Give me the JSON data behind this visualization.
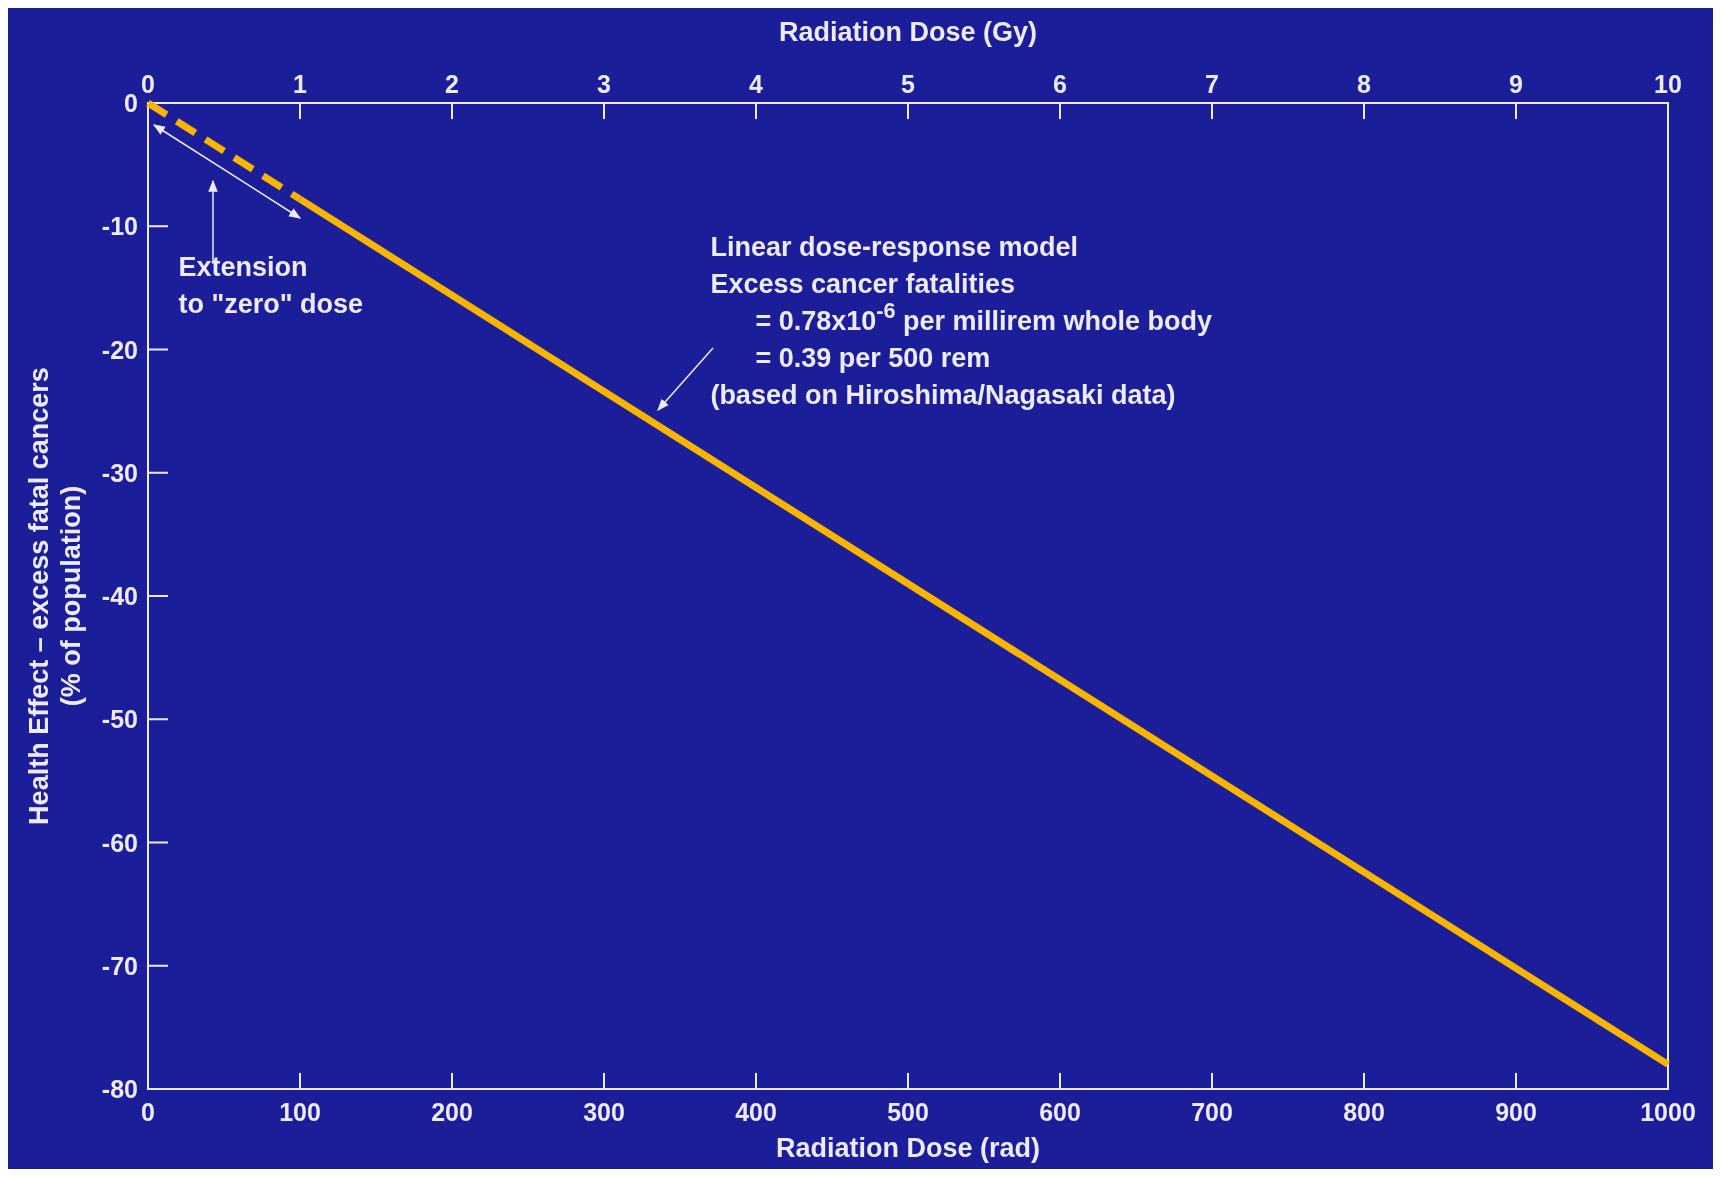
{
  "chart_data": {
    "type": "line",
    "xlabel": "Radiation Dose (rad)",
    "x2label": "Radiation Dose (Gy)",
    "ylabel": "Health Effect – excess fatal cancers\n(% of population)",
    "xlim": [
      0,
      1000
    ],
    "xticks": [
      0,
      100,
      200,
      300,
      400,
      500,
      600,
      700,
      800,
      900,
      1000
    ],
    "x2lim": [
      0,
      10
    ],
    "x2ticks": [
      0,
      1,
      2,
      3,
      4,
      5,
      6,
      7,
      8,
      9,
      10
    ],
    "ylim": [
      -80,
      0
    ],
    "yticks": [
      -80,
      -70,
      -60,
      -50,
      -40,
      -30,
      -20,
      -10,
      0
    ],
    "series": [
      {
        "color": "#f7b500",
        "line_style": "dashed",
        "x": [
          0,
          100
        ],
        "values": [
          0,
          -7.8
        ]
      },
      {
        "color": "#f7b500",
        "line_style": "solid",
        "x": [
          100,
          1000
        ],
        "values": [
          -7.8,
          -78
        ]
      }
    ],
    "annotations": [
      "Extension\nto \"zero\" dose",
      "Linear dose-response model\nExcess cancer fatalities\n      = 0.78x10$^{-6}$ per millirem whole body\n      = 0.39 per 500 rem\n(based on Hiroshima/Nagasaki data)"
    ],
    "grid": false
  }
}
